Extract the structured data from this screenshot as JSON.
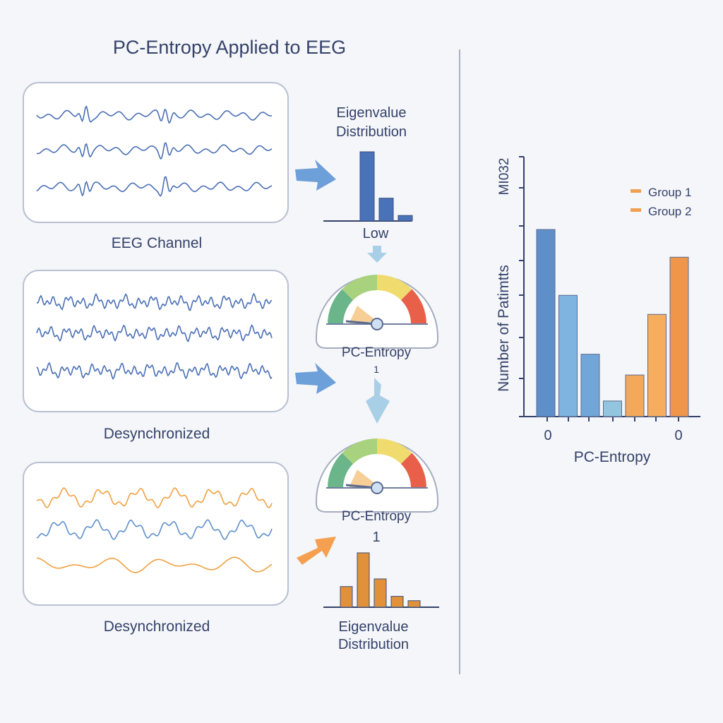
{
  "title": "PC-Entropy Applied to EEG",
  "panels": [
    {
      "caption": "EEG Channel",
      "style": "synchronized",
      "color": "#4a6fb5"
    },
    {
      "caption": "Desynchronized",
      "style": "noisy",
      "color": "#4a6fb5"
    },
    {
      "caption": "Desynchronized",
      "style": "mixed",
      "color": "#f0a040"
    }
  ],
  "eigen_top": {
    "title_line1": "Eigenvalue",
    "title_line2": "Distribution",
    "label": "Low",
    "values": [
      1.0,
      0.33,
      0.08
    ],
    "color": "#4a72b8"
  },
  "gauge_1": {
    "label": "PC-Entropy",
    "value_text": "1"
  },
  "gauge_2": {
    "label": "PC-Entropy",
    "value_text": "1"
  },
  "eigen_bottom": {
    "title_line1": "Eigenvalue",
    "title_line2": "Distribution",
    "values": [
      0.38,
      1.0,
      0.52,
      0.2,
      0.12
    ],
    "color": "#e0913a"
  },
  "chart_data": {
    "type": "bar",
    "title": "",
    "xlabel": "PC-Entropy",
    "ylabel": "Number of Patimtts",
    "ylabel_top": "MI032",
    "x_tick_labels": [
      "0",
      "0"
    ],
    "ylim": [
      0,
      7.5
    ],
    "legend": [
      {
        "name": "Group 1",
        "color": "#f0a050"
      },
      {
        "name": "Group 2",
        "color": "#f0a050"
      }
    ],
    "legend_position": "top-right",
    "series": [
      {
        "name": "Group 1",
        "values": [
          5.4,
          3.5,
          1.8,
          0.45
        ],
        "colors": [
          "#5f8fc8",
          "#7fb4e0",
          "#72a6d8",
          "#93c6de"
        ]
      },
      {
        "name": "Group 2",
        "values": [
          1.2,
          2.95,
          4.6
        ],
        "colors": [
          "#f4a85a",
          "#f6ae5e",
          "#f0964a"
        ]
      }
    ]
  }
}
